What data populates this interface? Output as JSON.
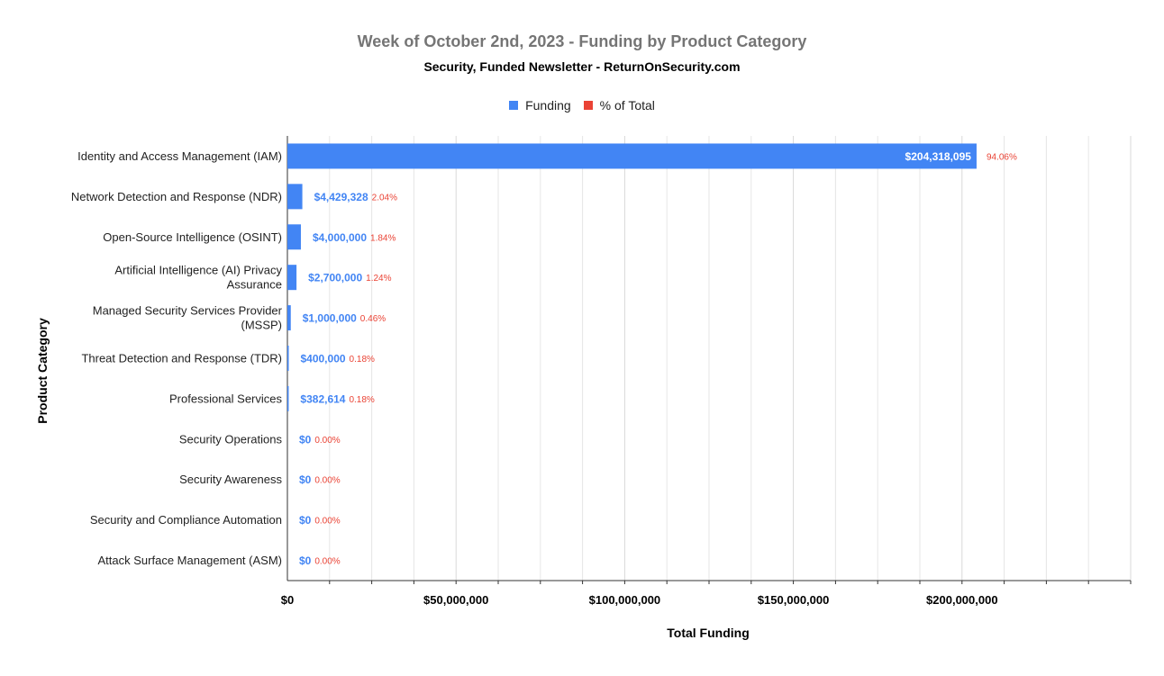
{
  "chart_data": {
    "type": "bar",
    "orientation": "horizontal",
    "title": "Week of October 2nd, 2023 - Funding by Product Category",
    "subtitle": "Security, Funded Newsletter - ReturnOnSecurity.com",
    "xlabel": "Total Funding",
    "ylabel": "Product Category",
    "legend_position": "top",
    "grid": true,
    "xlim": [
      0,
      250000000
    ],
    "x_ticks": [
      0,
      50000000,
      100000000,
      150000000,
      200000000
    ],
    "x_tick_labels": [
      "$0",
      "$50,000,000",
      "$100,000,000",
      "$150,000,000",
      "$200,000,000"
    ],
    "categories": [
      [
        "Identity and Access Management (IAM)"
      ],
      [
        "Network Detection and Response (NDR)"
      ],
      [
        "Open-Source Intelligence (OSINT)"
      ],
      [
        "Artificial Intelligence (AI) Privacy",
        "Assurance"
      ],
      [
        "Managed Security Services Provider",
        "(MSSP)"
      ],
      [
        "Threat Detection and Response (TDR)"
      ],
      [
        "Professional Services"
      ],
      [
        "Security Operations"
      ],
      [
        "Security Awareness"
      ],
      [
        "Security and Compliance Automation"
      ],
      [
        "Attack Surface Management (ASM)"
      ]
    ],
    "series": [
      {
        "name": "Funding",
        "color": "#4285f4",
        "values": [
          204318095,
          4429328,
          4000000,
          2700000,
          1000000,
          400000,
          382614,
          0,
          0,
          0,
          0
        ],
        "labels": [
          "$204,318,095",
          "$4,429,328",
          "$4,000,000",
          "$2,700,000",
          "$1,000,000",
          "$400,000",
          "$382,614",
          "$0",
          "$0",
          "$0",
          "$0"
        ]
      },
      {
        "name": "% of Total",
        "color": "#ea4335",
        "values": [
          94.06,
          2.04,
          1.84,
          1.24,
          0.46,
          0.18,
          0.18,
          0,
          0,
          0,
          0
        ],
        "labels": [
          "94.06%",
          "2.04%",
          "1.84%",
          "1.24%",
          "0.46%",
          "0.18%",
          "0.18%",
          "0.00%",
          "0.00%",
          "0.00%",
          "0.00%"
        ]
      }
    ]
  }
}
